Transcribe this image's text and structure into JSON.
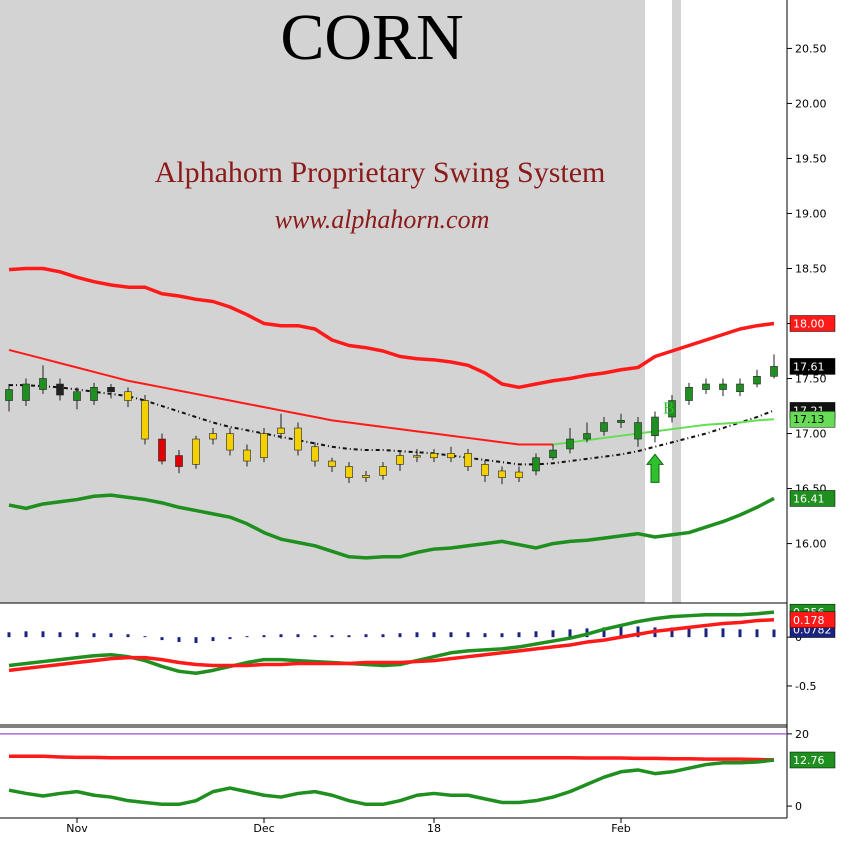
{
  "chart_data": [
    {
      "type": "candlestick",
      "title": "CORN",
      "subtitle": "Alphahorn Proprietary Swing System",
      "source": "www.alphahorn.com",
      "categories": [
        null,
        null,
        null,
        null,
        "Nov",
        null,
        null,
        null,
        null,
        null,
        null,
        null,
        null,
        null,
        null,
        "Dec",
        null,
        null,
        null,
        null,
        null,
        null,
        null,
        null,
        null,
        "18",
        null,
        null,
        null,
        null,
        null,
        null,
        null,
        null,
        null,
        null,
        "Feb",
        null,
        null,
        null,
        null,
        null,
        null,
        null,
        null,
        null
      ],
      "open": [
        17.4,
        17.3,
        17.4,
        17.45,
        17.38,
        17.3,
        17.42,
        17.38,
        17.3,
        16.95,
        16.8,
        16.72,
        16.95,
        17.0,
        16.85,
        16.78,
        17.0,
        17.05,
        16.88,
        16.75,
        16.7,
        16.6,
        16.62,
        16.72,
        16.8,
        16.82,
        16.78,
        16.82,
        16.72,
        16.66,
        16.6,
        16.66,
        16.78,
        16.86,
        16.95,
        17.02,
        17.1,
        17.1,
        16.98,
        17.15,
        17.3,
        17.4,
        17.45,
        17.38,
        17.45,
        17.52
      ],
      "high": [
        17.45,
        17.5,
        17.62,
        17.5,
        17.42,
        17.46,
        17.45,
        17.42,
        17.35,
        17.0,
        16.85,
        16.98,
        17.05,
        17.05,
        16.9,
        17.05,
        17.18,
        17.1,
        16.92,
        16.78,
        16.74,
        16.66,
        16.74,
        16.84,
        16.86,
        16.86,
        16.88,
        16.86,
        16.76,
        16.7,
        16.7,
        16.82,
        16.9,
        17.05,
        17.1,
        17.15,
        17.18,
        17.15,
        17.2,
        17.35,
        17.46,
        17.5,
        17.5,
        17.5,
        17.58,
        17.72
      ],
      "low": [
        17.2,
        17.25,
        17.36,
        17.3,
        17.22,
        17.26,
        17.32,
        17.24,
        16.9,
        16.72,
        16.64,
        16.68,
        16.9,
        16.8,
        16.7,
        16.74,
        16.95,
        16.8,
        16.7,
        16.65,
        16.55,
        16.56,
        16.58,
        16.66,
        16.74,
        16.74,
        16.74,
        16.66,
        16.56,
        16.54,
        16.56,
        16.62,
        16.76,
        16.82,
        16.92,
        16.98,
        17.05,
        16.88,
        16.92,
        17.1,
        17.26,
        17.36,
        17.34,
        17.34,
        17.42,
        17.5
      ],
      "close": [
        17.3,
        17.45,
        17.5,
        17.35,
        17.3,
        17.42,
        17.38,
        17.3,
        16.95,
        16.75,
        16.7,
        16.95,
        17.0,
        16.85,
        16.75,
        17.0,
        17.05,
        16.85,
        16.75,
        16.7,
        16.6,
        16.62,
        16.7,
        16.8,
        16.8,
        16.78,
        16.82,
        16.7,
        16.62,
        16.6,
        16.65,
        16.78,
        16.85,
        16.95,
        17.0,
        17.1,
        17.12,
        16.95,
        17.15,
        17.3,
        17.42,
        17.45,
        17.4,
        17.45,
        17.52,
        17.61
      ],
      "colors": [
        "#1f8f1f",
        "#1f8f1f",
        "#1f8f1f",
        "#222222",
        "#1f8f1f",
        "#1f8f1f",
        "#222222",
        "#f5d000",
        "#f5d000",
        "#e00000",
        "#e00000",
        "#f5d000",
        "#f5d000",
        "#f5d000",
        "#f5d000",
        "#f5d000",
        "#f5d000",
        "#f5d000",
        "#f5d000",
        "#f5d000",
        "#f5d000",
        "#f5d000",
        "#f5d000",
        "#f5d000",
        "#f5d000",
        "#f5d000",
        "#f5d000",
        "#f5d000",
        "#f5d000",
        "#f5d000",
        "#f5d000",
        "#1f8f1f",
        "#1f8f1f",
        "#1f8f1f",
        "#1f8f1f",
        "#1f8f1f",
        "#1f8f1f",
        "#1f8f1f",
        "#1f8f1f",
        "#1f8f1f",
        "#1f8f1f",
        "#1f8f1f",
        "#1f8f1f",
        "#1f8f1f",
        "#1f8f1f",
        "#1f8f1f"
      ],
      "close_color": "#000000",
      "close_tag": "17.61",
      "series": [
        {
          "color": "#ff1a1a",
          "thick": true,
          "tag": "18.00",
          "values": [
            18.49,
            18.5,
            18.5,
            18.47,
            18.42,
            18.38,
            18.35,
            18.33,
            18.33,
            18.27,
            18.25,
            18.22,
            18.2,
            18.15,
            18.08,
            18.0,
            17.98,
            17.98,
            17.95,
            17.85,
            17.8,
            17.78,
            17.75,
            17.7,
            17.68,
            17.67,
            17.65,
            17.62,
            17.55,
            17.45,
            17.42,
            17.45,
            17.48,
            17.5,
            17.53,
            17.55,
            17.58,
            17.6,
            17.7,
            17.75,
            17.8,
            17.85,
            17.9,
            17.95,
            17.98,
            18.0
          ]
        },
        {
          "color": "#1f8f1f",
          "thick": true,
          "tag": "16.41",
          "values": [
            16.35,
            16.32,
            16.36,
            16.38,
            16.4,
            16.43,
            16.44,
            16.42,
            16.4,
            16.37,
            16.33,
            16.3,
            16.27,
            16.24,
            16.18,
            16.1,
            16.04,
            16.01,
            15.98,
            15.93,
            15.88,
            15.87,
            15.88,
            15.88,
            15.92,
            15.95,
            15.96,
            15.98,
            16.0,
            16.02,
            15.99,
            15.96,
            16.0,
            16.02,
            16.03,
            16.05,
            16.07,
            16.09,
            16.06,
            16.08,
            16.1,
            16.15,
            16.2,
            16.26,
            16.33,
            16.41
          ]
        },
        {
          "color": "#ff1a1a",
          "thick": false,
          "values": [
            17.76,
            17.72,
            17.68,
            17.64,
            17.6,
            17.56,
            17.52,
            17.48,
            17.45,
            17.42,
            17.39,
            17.36,
            17.33,
            17.3,
            17.27,
            17.24,
            17.21,
            17.18,
            17.15,
            17.12,
            17.1,
            17.08,
            17.06,
            17.04,
            17.02,
            17.0,
            16.98,
            16.96,
            16.94,
            16.92,
            16.9,
            16.9,
            16.9,
            null,
            null,
            null,
            null,
            null,
            null,
            null,
            null,
            null,
            null,
            null,
            null,
            null
          ]
        },
        {
          "color": "#111111",
          "thick": false,
          "dashed": true,
          "tag": "17.21",
          "values": [
            17.44,
            17.44,
            17.43,
            17.42,
            17.4,
            17.38,
            17.36,
            17.34,
            17.3,
            17.25,
            17.2,
            17.15,
            17.1,
            17.06,
            17.03,
            17.0,
            16.97,
            16.94,
            16.91,
            16.88,
            16.86,
            16.85,
            16.85,
            16.84,
            16.83,
            16.82,
            16.8,
            16.78,
            16.76,
            16.74,
            16.72,
            16.72,
            16.73,
            16.75,
            16.77,
            16.79,
            16.81,
            16.84,
            16.88,
            16.92,
            16.96,
            17.0,
            17.05,
            17.1,
            17.15,
            17.21
          ]
        },
        {
          "color": "#66dd55",
          "thick": false,
          "tag": "17.13",
          "values": [
            null,
            null,
            null,
            null,
            null,
            null,
            null,
            null,
            null,
            null,
            null,
            null,
            null,
            null,
            null,
            null,
            null,
            null,
            null,
            null,
            null,
            null,
            null,
            null,
            null,
            null,
            null,
            null,
            null,
            null,
            null,
            null,
            16.9,
            16.92,
            16.94,
            16.96,
            16.98,
            17.0,
            17.02,
            17.04,
            17.06,
            17.08,
            17.09,
            17.1,
            17.12,
            17.13
          ]
        }
      ],
      "annotations": [
        {
          "text": "B",
          "index": 38,
          "color": "#2fbf2f"
        }
      ],
      "ylim": [
        15.46,
        20.94
      ],
      "yticks": [
        {
          "value": 16,
          "label": "16.00"
        },
        {
          "value": 16.5,
          "label": "16.50"
        },
        {
          "value": 17,
          "label": "17.00"
        },
        {
          "value": 17.5,
          "label": "17.50"
        },
        {
          "value": 18,
          "label": "18.00"
        },
        {
          "value": 18.5,
          "label": "18.50"
        },
        {
          "value": 19,
          "label": "19.00"
        },
        {
          "value": 19.5,
          "label": "19.50"
        },
        {
          "value": 20,
          "label": "20.00"
        },
        {
          "value": 20.5,
          "label": "20.50"
        }
      ]
    },
    {
      "type": "line",
      "series": [
        {
          "color": "#1a237e",
          "bars": true,
          "tag": "0.0782",
          "values": [
            0.05,
            0.06,
            0.06,
            0.05,
            0.05,
            0.04,
            0.04,
            0.03,
            0.01,
            -0.03,
            -0.05,
            -0.06,
            -0.04,
            -0.02,
            0.01,
            0.02,
            0.03,
            0.03,
            0.02,
            0.02,
            0.02,
            0.03,
            0.03,
            0.04,
            0.05,
            0.05,
            0.05,
            0.05,
            0.04,
            0.04,
            0.05,
            0.06,
            0.07,
            0.08,
            0.09,
            0.1,
            0.11,
            0.11,
            0.1,
            0.1,
            0.09,
            0.09,
            0.09,
            0.08,
            0.08,
            0.0782
          ]
        },
        {
          "color": "#1f8f1f",
          "thick": true,
          "tag": "0.256",
          "values": [
            -0.29,
            -0.27,
            -0.25,
            -0.23,
            -0.21,
            -0.19,
            -0.18,
            -0.2,
            -0.24,
            -0.3,
            -0.35,
            -0.37,
            -0.34,
            -0.3,
            -0.26,
            -0.23,
            -0.23,
            -0.24,
            -0.25,
            -0.26,
            -0.27,
            -0.28,
            -0.29,
            -0.28,
            -0.24,
            -0.2,
            -0.16,
            -0.14,
            -0.13,
            -0.12,
            -0.1,
            -0.07,
            -0.04,
            -0.01,
            0.03,
            0.08,
            0.12,
            0.16,
            0.19,
            0.21,
            0.22,
            0.23,
            0.23,
            0.23,
            0.24,
            0.256
          ]
        },
        {
          "color": "#ff1a1a",
          "thick": true,
          "tag": "0.178",
          "values": [
            -0.34,
            -0.32,
            -0.3,
            -0.28,
            -0.26,
            -0.24,
            -0.22,
            -0.21,
            -0.21,
            -0.23,
            -0.26,
            -0.28,
            -0.29,
            -0.29,
            -0.29,
            -0.28,
            -0.28,
            -0.27,
            -0.27,
            -0.27,
            -0.27,
            -0.26,
            -0.26,
            -0.26,
            -0.25,
            -0.24,
            -0.22,
            -0.2,
            -0.18,
            -0.16,
            -0.14,
            -0.12,
            -0.1,
            -0.08,
            -0.05,
            -0.03,
            0.0,
            0.03,
            0.06,
            0.08,
            0.1,
            0.12,
            0.14,
            0.15,
            0.17,
            0.178
          ]
        }
      ],
      "ylim": [
        -0.9,
        0.35
      ],
      "yticks": [
        -0.5,
        0
      ]
    },
    {
      "type": "line",
      "hlines": [
        {
          "value": 20,
          "color": "#9c4fd6"
        }
      ],
      "series": [
        {
          "color": "#ff1a1a",
          "thick": true,
          "values": [
            13.8,
            13.8,
            13.8,
            13.6,
            13.5,
            13.5,
            13.4,
            13.4,
            13.4,
            13.4,
            13.4,
            13.4,
            13.4,
            13.4,
            13.4,
            13.4,
            13.4,
            13.4,
            13.4,
            13.4,
            13.4,
            13.4,
            13.4,
            13.4,
            13.4,
            13.4,
            13.4,
            13.4,
            13.4,
            13.4,
            13.4,
            13.4,
            13.4,
            13.4,
            13.3,
            13.3,
            13.3,
            13.2,
            13.2,
            13.1,
            13.1,
            13.0,
            13.0,
            13.0,
            12.9,
            12.8
          ]
        },
        {
          "color": "#1f8f1f",
          "thick": true,
          "tag": "12.76",
          "values": [
            4.4,
            3.5,
            2.8,
            3.5,
            4.0,
            3.0,
            2.5,
            1.5,
            1.0,
            0.5,
            0.5,
            1.5,
            4.0,
            5.0,
            4.0,
            3.0,
            2.5,
            3.5,
            4.0,
            3.0,
            1.5,
            0.5,
            0.5,
            1.5,
            3.0,
            3.5,
            3.0,
            3.0,
            2.0,
            1.0,
            1.0,
            1.5,
            2.5,
            4.0,
            6.0,
            8.0,
            9.5,
            10.0,
            9.0,
            9.5,
            10.5,
            11.5,
            12.0,
            12.0,
            12.2,
            12.76
          ]
        }
      ],
      "ylim": [
        -3.3,
        21.9
      ],
      "yticks": [
        0,
        20
      ]
    }
  ]
}
